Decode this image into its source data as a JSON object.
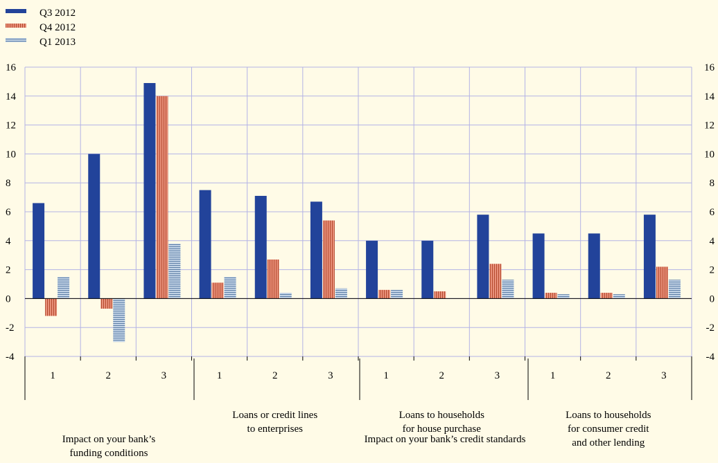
{
  "chart_data": {
    "type": "bar",
    "ylim": [
      -4,
      16
    ],
    "y_ticks": [
      "16",
      "14",
      "12",
      "10",
      "8",
      "6",
      "4",
      "2",
      "0",
      "-2",
      "-4"
    ],
    "grid": true,
    "legend_position": "top-left",
    "categories": [
      "1",
      "2",
      "3",
      "1",
      "2",
      "3",
      "1",
      "2",
      "3",
      "1",
      "2",
      "3"
    ],
    "series": [
      {
        "name": "Q3 2012",
        "color": "#22439a",
        "pattern": "solid",
        "values": [
          6.6,
          10.0,
          14.9,
          7.5,
          7.1,
          6.7,
          4.0,
          4.0,
          5.8,
          4.5,
          4.5,
          5.8
        ]
      },
      {
        "name": "Q4 2012",
        "color": "#e8907a",
        "pattern": "vertical-stripes",
        "values": [
          -1.2,
          -0.7,
          14.0,
          1.1,
          2.7,
          5.4,
          0.6,
          0.5,
          2.4,
          0.4,
          0.4,
          2.2
        ]
      },
      {
        "name": "Q1 2013",
        "color": "#a9c0d8",
        "pattern": "horizontal-stripes",
        "values": [
          1.5,
          -3.0,
          3.8,
          1.5,
          0.4,
          0.7,
          0.6,
          0.0,
          1.3,
          0.3,
          0.3,
          1.3
        ]
      }
    ],
    "groups": [
      {
        "label": "",
        "start": 0,
        "end": 2
      },
      {
        "label": "Loans or credit lines\nto enterprises",
        "start": 3,
        "end": 5
      },
      {
        "label": "Loans to households\nfor house purchase",
        "start": 6,
        "end": 8
      },
      {
        "label": "Loans to households\nfor consumer credit\nand other lending",
        "start": 9,
        "end": 11
      }
    ],
    "super_groups": [
      {
        "label": "Impact on your bank’s\nfunding conditions",
        "start": 0,
        "end": 2
      },
      {
        "label": "Impact on your bank’s credit standards",
        "start": 3,
        "end": 11
      }
    ]
  }
}
